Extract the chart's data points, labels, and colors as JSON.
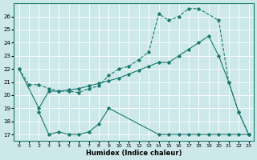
{
  "line1_x": [
    0,
    1,
    2,
    3,
    4,
    5,
    6,
    7,
    8,
    9,
    10,
    11,
    12,
    13,
    14,
    15,
    16,
    17,
    18,
    20,
    21,
    22,
    23
  ],
  "line1_y": [
    22,
    20.8,
    20.8,
    20.5,
    20.3,
    20.3,
    20.2,
    20.5,
    20.7,
    21.5,
    22.0,
    22.2,
    22.7,
    23.3,
    26.2,
    25.7,
    26.0,
    26.6,
    26.6,
    25.7,
    21.0,
    18.7,
    17.0
  ],
  "line2_x": [
    0,
    2,
    3,
    4,
    5,
    6,
    7,
    8,
    9,
    10,
    11,
    12,
    13,
    14,
    15,
    16,
    17,
    18,
    19,
    20,
    21,
    22,
    23
  ],
  "line2_y": [
    22,
    19.0,
    20.3,
    20.3,
    20.4,
    20.5,
    20.7,
    20.9,
    21.1,
    21.3,
    21.6,
    21.9,
    22.2,
    22.5,
    22.5,
    23.0,
    23.5,
    24.0,
    24.5,
    23.0,
    21.0,
    18.7,
    17.0
  ],
  "line3_x": [
    2,
    3,
    4,
    5,
    6,
    7,
    8,
    9,
    14,
    15,
    16,
    17,
    18,
    19,
    20,
    21,
    22,
    23
  ],
  "line3_y": [
    18.7,
    17.0,
    17.2,
    17.0,
    17.0,
    17.2,
    17.8,
    19.0,
    17.0,
    17.0,
    17.0,
    17.0,
    17.0,
    17.0,
    17.0,
    17.0,
    17.0,
    17.0
  ],
  "line_color": "#1a7a6e",
  "bg_color": "#cde8e8",
  "grid_color": "#b8d8d8",
  "xlabel": "Humidex (Indice chaleur)",
  "xlim": [
    -0.5,
    23.5
  ],
  "ylim": [
    16.5,
    27.0
  ],
  "yticks": [
    17,
    18,
    19,
    20,
    21,
    22,
    23,
    24,
    25,
    26
  ],
  "xticks": [
    0,
    1,
    2,
    3,
    4,
    5,
    6,
    7,
    8,
    9,
    10,
    11,
    12,
    13,
    14,
    15,
    16,
    17,
    18,
    19,
    20,
    21,
    22,
    23
  ]
}
